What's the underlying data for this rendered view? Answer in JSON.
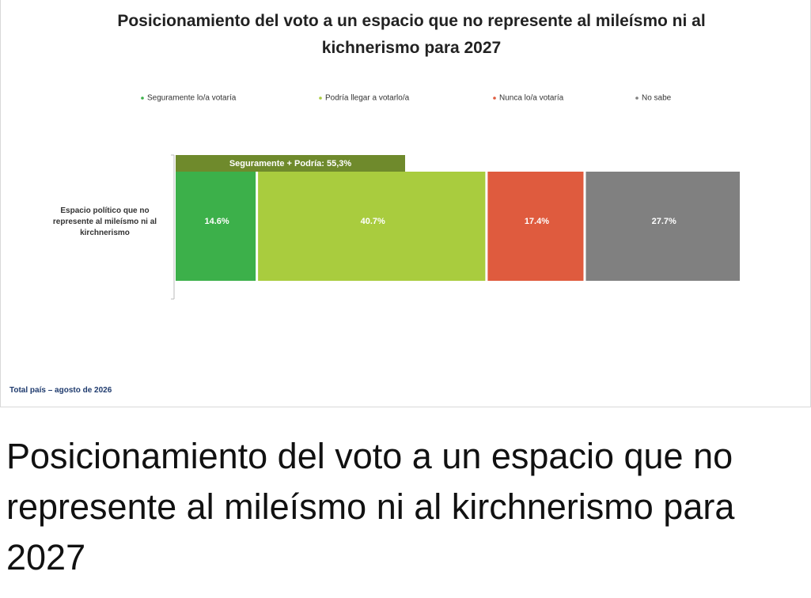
{
  "chart_data": {
    "type": "stacked-bar-horizontal",
    "title": "Posicionamiento del voto a un espacio que no represente al mileísmo ni al kichnerismo para 2027",
    "categories": [
      "Espacio político que no represente al mileísmo ni al kirchnerismo"
    ],
    "series": [
      {
        "name": "Seguramente lo/a votaría",
        "color": "#3cb04a",
        "values": [
          14.6
        ],
        "value_labels": [
          "14.6%"
        ]
      },
      {
        "name": "Podría llegar a votarlo/a",
        "color": "#a9cc3e",
        "values": [
          40.7
        ],
        "value_labels": [
          "40.7%"
        ]
      },
      {
        "name": "Nunca lo/a votaría",
        "color": "#df5b3e",
        "values": [
          17.4
        ],
        "value_labels": [
          "17.4%"
        ]
      },
      {
        "name": "No sabe",
        "color": "#808080",
        "values": [
          27.7
        ],
        "value_labels": [
          "27.7%"
        ]
      }
    ],
    "annotation": "Seguramente + Podría: 55,3%",
    "footnote": "Total país – agosto de 2026"
  },
  "caption": "Posicionamiento del voto a un espacio que no represente al mileísmo ni al kirchnerismo para 2027"
}
